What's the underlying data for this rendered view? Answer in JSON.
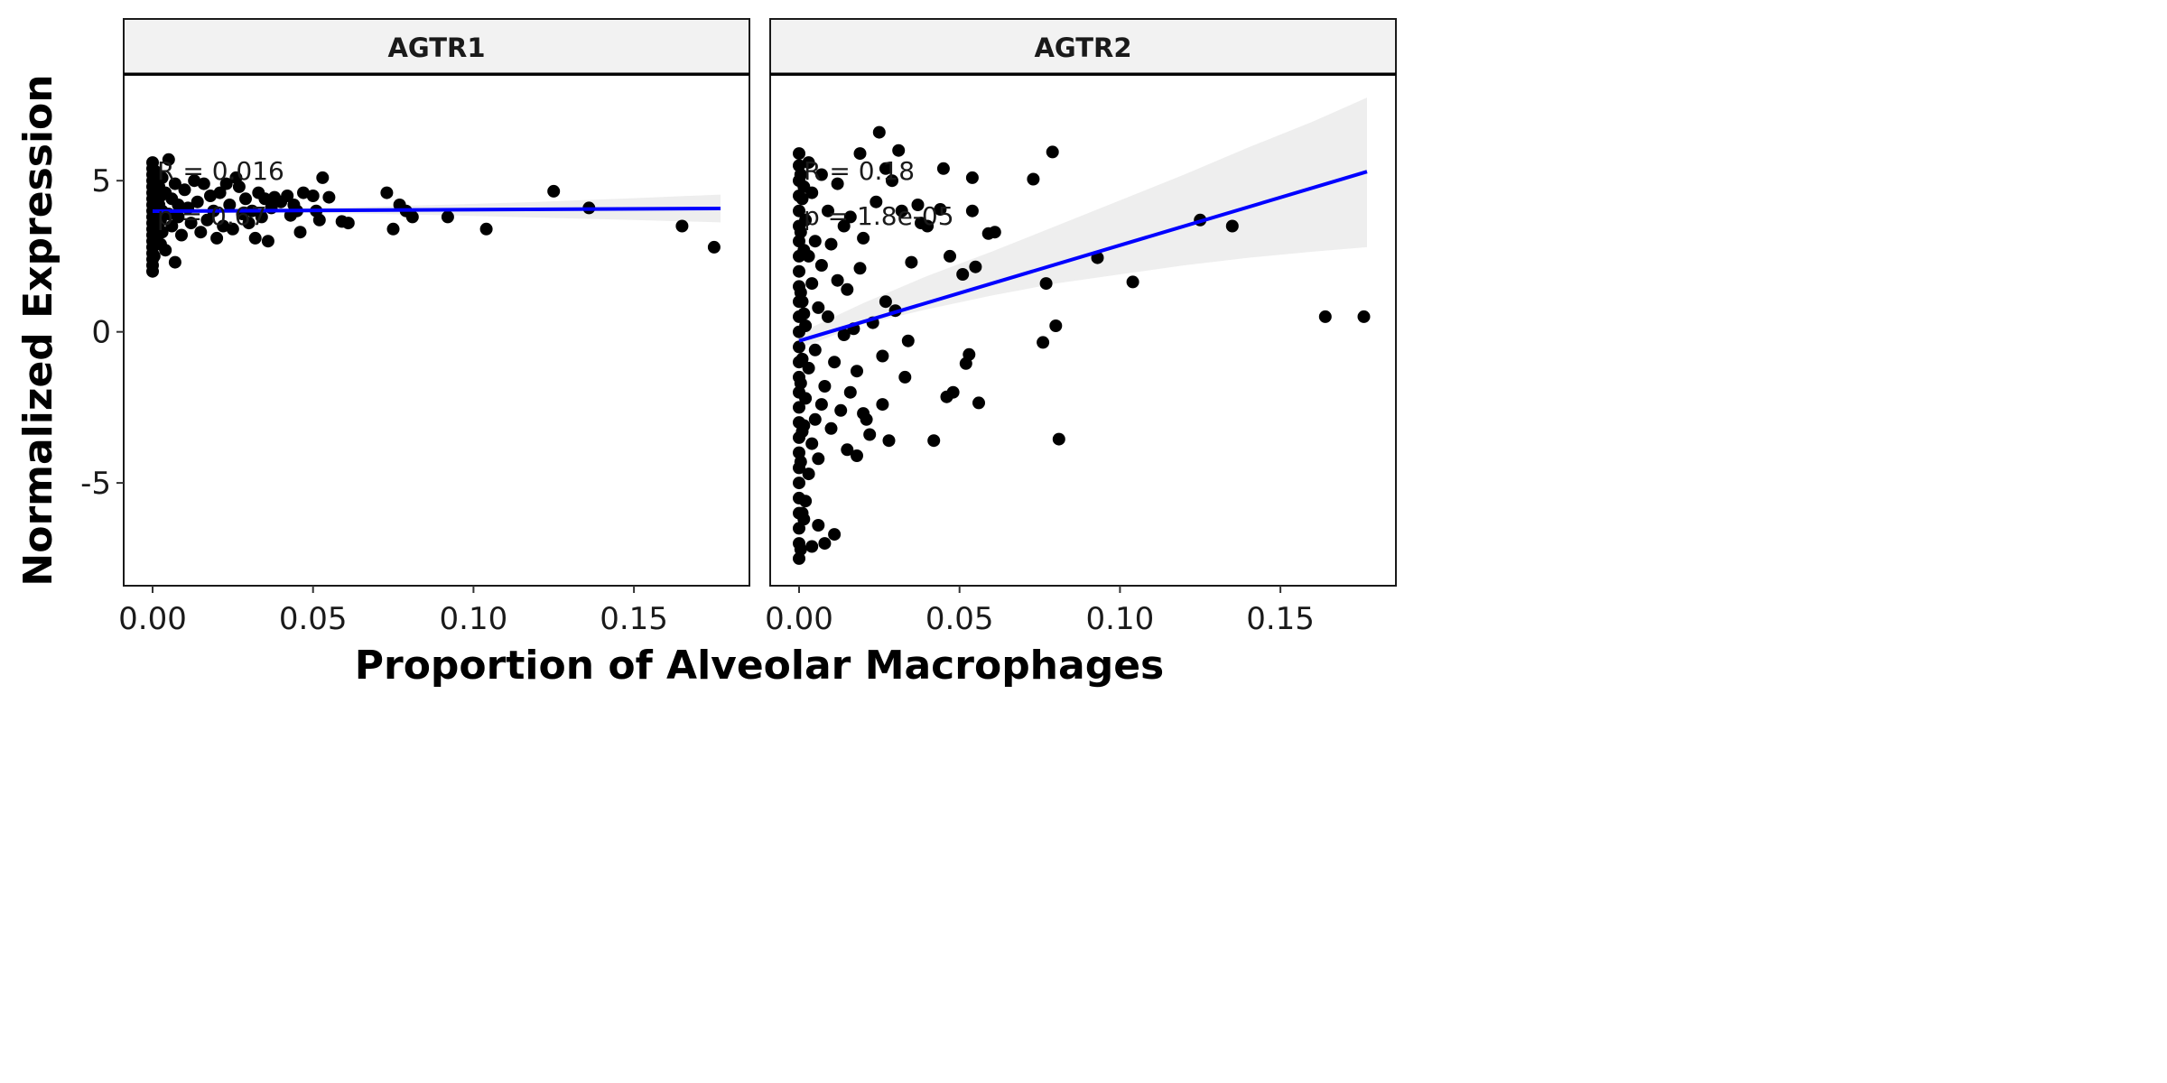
{
  "chart_data": {
    "type": "scatter",
    "layout": "facet_wrap, 2 panels side by side, shared y axis",
    "xlabel": "Proportion of Alveolar Macrophages",
    "ylabel": "Normalized Expression",
    "xlim": [
      -0.009,
      0.186
    ],
    "ylim": [
      -8.4,
      8.5
    ],
    "x_ticks": [
      0.0,
      0.05,
      0.1,
      0.15
    ],
    "x_tick_labels": [
      "0.00",
      "0.05",
      "0.10",
      "0.15"
    ],
    "y_ticks": [
      -5,
      0,
      5
    ],
    "y_tick_labels": [
      "-5",
      "0",
      "5"
    ],
    "grid": false,
    "legend": "none",
    "colors": {
      "points": "#000000",
      "fit_line": "#0000ff",
      "ci_band": "#ebebeb",
      "strip_bg": "#f2f2f2"
    },
    "panels": [
      {
        "title": "AGTR1",
        "annotation": {
          "r_label": "R = 0.016",
          "p_label": "p = 0.67"
        },
        "fit": {
          "x": [
            0.0,
            0.177
          ],
          "y": [
            3.99,
            4.08
          ]
        },
        "ci": {
          "x": [
            0.0,
            0.03,
            0.06,
            0.09,
            0.12,
            0.15,
            0.177
          ],
          "lower": [
            3.92,
            3.95,
            3.92,
            3.86,
            3.78,
            3.7,
            3.62
          ],
          "upper": [
            4.06,
            4.08,
            4.12,
            4.2,
            4.3,
            4.42,
            4.54
          ]
        },
        "points": [
          [
            0.175,
            2.8
          ],
          [
            0.165,
            3.5
          ],
          [
            0.136,
            4.1
          ],
          [
            0.125,
            4.65
          ],
          [
            0.104,
            3.4
          ],
          [
            0.092,
            3.8
          ],
          [
            0.081,
            3.8
          ],
          [
            0.079,
            4.0
          ],
          [
            0.077,
            4.2
          ],
          [
            0.075,
            3.4
          ],
          [
            0.073,
            4.6
          ],
          [
            0.061,
            3.6
          ],
          [
            0.059,
            3.65
          ],
          [
            0.055,
            4.45
          ],
          [
            0.053,
            5.1
          ],
          [
            0.052,
            3.7
          ],
          [
            0.051,
            4.0
          ],
          [
            0.05,
            4.5
          ],
          [
            0.047,
            4.6
          ],
          [
            0.046,
            3.3
          ],
          [
            0.045,
            4.0
          ],
          [
            0.044,
            4.2
          ],
          [
            0.043,
            3.85
          ],
          [
            0.042,
            4.5
          ],
          [
            0.04,
            4.3
          ],
          [
            0.038,
            4.45
          ],
          [
            0.037,
            4.1
          ],
          [
            0.036,
            3.0
          ],
          [
            0.035,
            4.4
          ],
          [
            0.034,
            3.8
          ],
          [
            0.033,
            4.6
          ],
          [
            0.032,
            3.1
          ],
          [
            0.031,
            4.0
          ],
          [
            0.03,
            3.6
          ],
          [
            0.029,
            4.4
          ],
          [
            0.028,
            3.9
          ],
          [
            0.027,
            4.8
          ],
          [
            0.026,
            5.1
          ],
          [
            0.025,
            3.4
          ],
          [
            0.024,
            4.2
          ],
          [
            0.023,
            4.9
          ],
          [
            0.022,
            3.5
          ],
          [
            0.021,
            4.6
          ],
          [
            0.02,
            3.1
          ],
          [
            0.019,
            4.0
          ],
          [
            0.018,
            4.5
          ],
          [
            0.017,
            3.7
          ],
          [
            0.016,
            4.9
          ],
          [
            0.015,
            3.3
          ],
          [
            0.014,
            4.3
          ],
          [
            0.013,
            5.0
          ],
          [
            0.012,
            3.6
          ],
          [
            0.011,
            4.1
          ],
          [
            0.01,
            4.7
          ],
          [
            0.009,
            3.2
          ],
          [
            0.008,
            4.2
          ],
          [
            0.008,
            3.8
          ],
          [
            0.007,
            2.3
          ],
          [
            0.007,
            4.9
          ],
          [
            0.006,
            3.5
          ],
          [
            0.006,
            4.4
          ],
          [
            0.005,
            5.7
          ],
          [
            0.005,
            3.9
          ],
          [
            0.004,
            2.7
          ],
          [
            0.004,
            4.6
          ],
          [
            0.003,
            3.3
          ],
          [
            0.003,
            5.1
          ],
          [
            0.003,
            4.0
          ],
          [
            0.002,
            3.6
          ],
          [
            0.002,
            4.8
          ],
          [
            0.002,
            4.2
          ],
          [
            0.001,
            3.1
          ],
          [
            0.001,
            5.3
          ],
          [
            0.001,
            4.5
          ],
          [
            0.001,
            3.8
          ],
          [
            0.0,
            2.0
          ],
          [
            0.0,
            2.2
          ],
          [
            0.0,
            2.4
          ],
          [
            0.0,
            2.6
          ],
          [
            0.0,
            2.8
          ],
          [
            0.0,
            3.0
          ],
          [
            0.0,
            3.2
          ],
          [
            0.0,
            3.4
          ],
          [
            0.0,
            3.6
          ],
          [
            0.0,
            3.8
          ],
          [
            0.0,
            4.0
          ],
          [
            0.0,
            4.2
          ],
          [
            0.0,
            4.4
          ],
          [
            0.0,
            4.6
          ],
          [
            0.0,
            4.8
          ],
          [
            0.0,
            5.0
          ],
          [
            0.0,
            5.2
          ],
          [
            0.0,
            5.4
          ],
          [
            0.0,
            5.6
          ],
          [
            0.0005,
            2.5
          ],
          [
            0.0005,
            3.9
          ],
          [
            0.0005,
            4.7
          ],
          [
            0.0015,
            3.3
          ],
          [
            0.0015,
            4.1
          ],
          [
            0.0015,
            5.0
          ],
          [
            0.0025,
            2.9
          ],
          [
            0.0025,
            3.7
          ],
          [
            0.0025,
            4.5
          ]
        ]
      },
      {
        "title": "AGTR2",
        "annotation": {
          "r_label": "R = 0.18",
          "p_label": "p = 1.8e-05"
        },
        "fit": {
          "x": [
            0.0,
            0.177
          ],
          "y": [
            -0.3,
            5.3
          ]
        },
        "ci": {
          "x": [
            0.0,
            0.02,
            0.04,
            0.06,
            0.08,
            0.1,
            0.12,
            0.14,
            0.16,
            0.177
          ],
          "lower": [
            -0.55,
            0.25,
            0.75,
            1.2,
            1.6,
            1.9,
            2.2,
            2.45,
            2.65,
            2.8
          ],
          "upper": [
            -0.05,
            0.95,
            1.85,
            2.65,
            3.5,
            4.35,
            5.2,
            6.1,
            6.95,
            7.75
          ]
        },
        "points": [
          [
            0.176,
            0.5
          ],
          [
            0.164,
            0.5
          ],
          [
            0.135,
            3.5
          ],
          [
            0.125,
            3.7
          ],
          [
            0.104,
            1.65
          ],
          [
            0.093,
            2.45
          ],
          [
            0.081,
            -3.55
          ],
          [
            0.08,
            0.2
          ],
          [
            0.079,
            5.95
          ],
          [
            0.077,
            1.6
          ],
          [
            0.076,
            -0.35
          ],
          [
            0.073,
            5.05
          ],
          [
            0.061,
            3.3
          ],
          [
            0.059,
            3.25
          ],
          [
            0.056,
            -2.35
          ],
          [
            0.055,
            2.15
          ],
          [
            0.054,
            4.0
          ],
          [
            0.054,
            5.1
          ],
          [
            0.053,
            -0.75
          ],
          [
            0.052,
            -1.05
          ],
          [
            0.051,
            1.9
          ],
          [
            0.048,
            -2.0
          ],
          [
            0.047,
            2.5
          ],
          [
            0.046,
            -2.15
          ],
          [
            0.045,
            5.4
          ],
          [
            0.044,
            4.05
          ],
          [
            0.042,
            -3.6
          ],
          [
            0.04,
            3.5
          ],
          [
            0.038,
            3.6
          ],
          [
            0.037,
            4.2
          ],
          [
            0.035,
            2.3
          ],
          [
            0.034,
            -0.3
          ],
          [
            0.033,
            -1.5
          ],
          [
            0.032,
            4.0
          ],
          [
            0.031,
            6.0
          ],
          [
            0.03,
            0.7
          ],
          [
            0.029,
            5.0
          ],
          [
            0.028,
            -3.6
          ],
          [
            0.027,
            5.4
          ],
          [
            0.027,
            1.0
          ],
          [
            0.026,
            -0.8
          ],
          [
            0.026,
            -2.4
          ],
          [
            0.025,
            6.6
          ],
          [
            0.024,
            4.3
          ],
          [
            0.023,
            0.3
          ],
          [
            0.022,
            -3.4
          ],
          [
            0.021,
            -2.9
          ],
          [
            0.02,
            3.1
          ],
          [
            0.02,
            -2.7
          ],
          [
            0.019,
            5.9
          ],
          [
            0.019,
            2.1
          ],
          [
            0.018,
            -1.3
          ],
          [
            0.018,
            -4.1
          ],
          [
            0.017,
            0.1
          ],
          [
            0.016,
            3.8
          ],
          [
            0.016,
            -2.0
          ],
          [
            0.015,
            1.4
          ],
          [
            0.015,
            -3.9
          ],
          [
            0.014,
            3.5
          ],
          [
            0.014,
            -0.1
          ],
          [
            0.013,
            -2.6
          ],
          [
            0.012,
            4.9
          ],
          [
            0.012,
            1.7
          ],
          [
            0.011,
            -1.0
          ],
          [
            0.011,
            -6.7
          ],
          [
            0.01,
            2.9
          ],
          [
            0.01,
            -3.2
          ],
          [
            0.009,
            0.5
          ],
          [
            0.009,
            4.0
          ],
          [
            0.008,
            -1.8
          ],
          [
            0.008,
            -7.0
          ],
          [
            0.007,
            2.2
          ],
          [
            0.007,
            -2.4
          ],
          [
            0.007,
            5.2
          ],
          [
            0.006,
            0.8
          ],
          [
            0.006,
            -4.2
          ],
          [
            0.006,
            -6.4
          ],
          [
            0.005,
            3.0
          ],
          [
            0.005,
            -0.6
          ],
          [
            0.005,
            -2.9
          ],
          [
            0.004,
            4.6
          ],
          [
            0.004,
            1.6
          ],
          [
            0.004,
            -3.7
          ],
          [
            0.004,
            -7.1
          ],
          [
            0.003,
            2.5
          ],
          [
            0.003,
            -1.2
          ],
          [
            0.003,
            5.6
          ],
          [
            0.003,
            -4.7
          ],
          [
            0.002,
            0.2
          ],
          [
            0.002,
            -2.2
          ],
          [
            0.002,
            3.7
          ],
          [
            0.002,
            -5.6
          ],
          [
            0.001,
            1.0
          ],
          [
            0.001,
            -0.9
          ],
          [
            0.001,
            4.4
          ],
          [
            0.001,
            -3.3
          ],
          [
            0.001,
            -6.0
          ],
          [
            0.0,
            -7.5
          ],
          [
            0.0,
            -7.0
          ],
          [
            0.0,
            -6.5
          ],
          [
            0.0,
            -6.0
          ],
          [
            0.0,
            -5.5
          ],
          [
            0.0,
            -5.0
          ],
          [
            0.0,
            -4.5
          ],
          [
            0.0,
            -4.0
          ],
          [
            0.0,
            -3.5
          ],
          [
            0.0,
            -3.0
          ],
          [
            0.0,
            -2.5
          ],
          [
            0.0,
            -2.0
          ],
          [
            0.0,
            -1.5
          ],
          [
            0.0,
            -1.0
          ],
          [
            0.0,
            -0.5
          ],
          [
            0.0,
            0.0
          ],
          [
            0.0,
            0.5
          ],
          [
            0.0,
            1.0
          ],
          [
            0.0,
            1.5
          ],
          [
            0.0,
            2.0
          ],
          [
            0.0,
            2.5
          ],
          [
            0.0,
            3.0
          ],
          [
            0.0,
            3.5
          ],
          [
            0.0,
            4.0
          ],
          [
            0.0,
            4.5
          ],
          [
            0.0,
            5.0
          ],
          [
            0.0,
            5.5
          ],
          [
            0.0,
            5.9
          ],
          [
            0.0005,
            -7.2
          ],
          [
            0.0005,
            -4.3
          ],
          [
            0.0005,
            -1.7
          ],
          [
            0.0005,
            1.3
          ],
          [
            0.0005,
            3.3
          ],
          [
            0.0005,
            5.2
          ],
          [
            0.0015,
            -6.2
          ],
          [
            0.0015,
            -3.1
          ],
          [
            0.0015,
            0.6
          ],
          [
            0.0015,
            2.7
          ],
          [
            0.0015,
            4.8
          ]
        ]
      }
    ]
  }
}
